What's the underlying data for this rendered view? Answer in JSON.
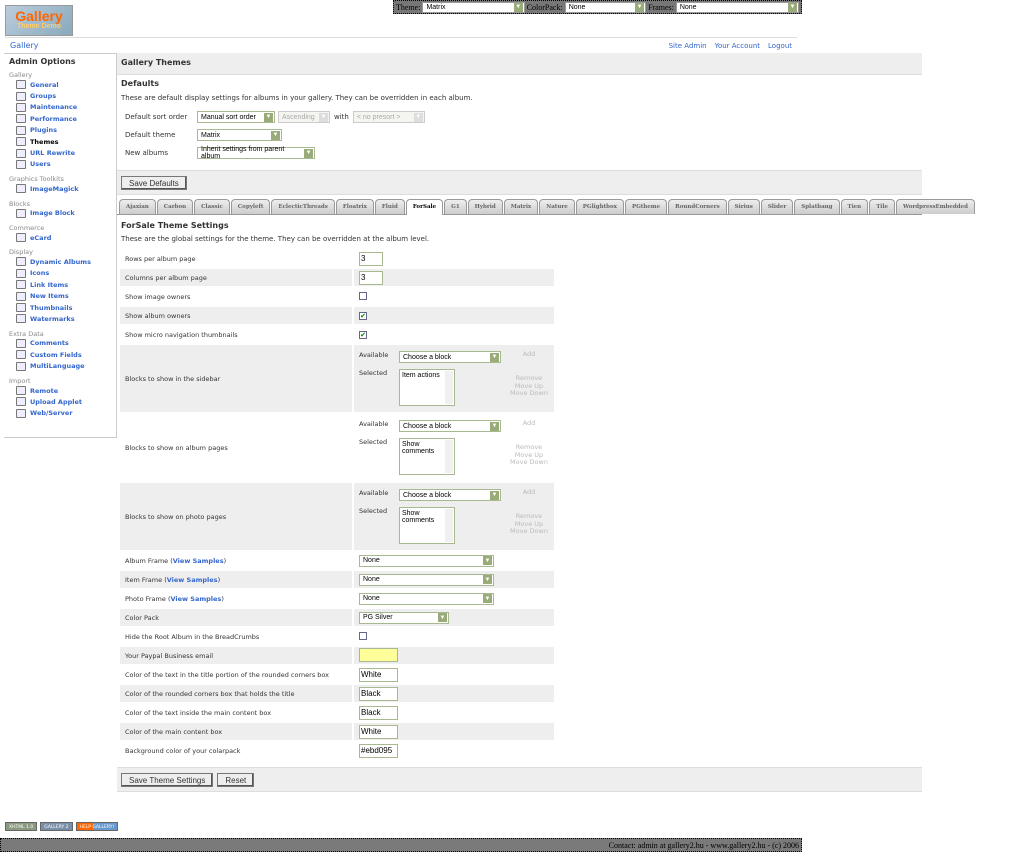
{
  "topbar": {
    "theme_label": "Theme:",
    "theme_value": "Matrix",
    "colorpack_label": "ColorPack:",
    "colorpack_value": "None",
    "frames_label": "Frames:",
    "frames_value": "None"
  },
  "logo": {
    "line1": "Gallery",
    "line2": "Theme Demo"
  },
  "nav": {
    "home": "Gallery",
    "links": [
      "Site Admin",
      "Your Account",
      "Logout"
    ]
  },
  "sidebar": {
    "title": "Admin Options",
    "groups": [
      {
        "label": "Gallery",
        "items": [
          "General",
          "Groups",
          "Maintenance",
          "Performance",
          "Plugins",
          "Themes",
          "URL Rewrite",
          "Users"
        ],
        "active": "Themes"
      },
      {
        "label": "Graphics Toolkits",
        "items": [
          "ImageMagick"
        ]
      },
      {
        "label": "Blocks",
        "items": [
          "Image Block"
        ]
      },
      {
        "label": "Commerce",
        "items": [
          "eCard"
        ]
      },
      {
        "label": "Display",
        "items": [
          "Dynamic Albums",
          "Icons",
          "Link Items",
          "New Items",
          "Thumbnails",
          "Watermarks"
        ]
      },
      {
        "label": "Extra Data",
        "items": [
          "Comments",
          "Custom Fields",
          "MultiLanguage"
        ]
      },
      {
        "label": "Import",
        "items": [
          "Remote",
          "Upload Applet",
          "Web/Server"
        ]
      }
    ]
  },
  "header": {
    "title": "Gallery Themes"
  },
  "defaults": {
    "title": "Defaults",
    "description": "These are default display settings for albums in your gallery. They can be overridden in each album.",
    "sort_label": "Default sort order",
    "sort_value": "Manual sort order",
    "direction_value": "Ascending",
    "with_label": "with",
    "presort_value": "< no presort >",
    "theme_label": "Default theme",
    "theme_value": "Matrix",
    "new_albums_label": "New albums",
    "new_albums_value": "Inherit settings from parent album",
    "save_label": "Save Defaults"
  },
  "tabs": {
    "items": [
      "Ajaxian",
      "Carbon",
      "Classic",
      "Copyleft",
      "EclecticThreads",
      "Floatrix",
      "Fluid",
      "ForSale",
      "G1",
      "Hybrid",
      "Matrix",
      "Nature",
      "PGlightbox",
      "PGtheme",
      "RoundCorners",
      "Sirius",
      "Slider",
      "Splatbang",
      "Tien",
      "Tile",
      "WordpressEmbedded"
    ],
    "active": "ForSale"
  },
  "settings": {
    "title": "ForSale Theme Settings",
    "description": "These are the global settings for the theme. They can be overridden at the album level.",
    "view_samples": "View Samples",
    "available_label": "Available",
    "selected_label": "Selected",
    "add_label": "Add",
    "remove_label": "Remove",
    "move_up_label": "Move Up",
    "move_down_label": "Move Down",
    "rows": [
      {
        "label": "Rows per album page",
        "type": "text",
        "value": "3"
      },
      {
        "label": "Columns per album page",
        "type": "text",
        "value": "3"
      },
      {
        "label": "Show image owners",
        "type": "checkbox",
        "checked": false
      },
      {
        "label": "Show album owners",
        "type": "checkbox",
        "checked": true
      },
      {
        "label": "Show micro navigation thumbnails",
        "type": "checkbox",
        "checked": true
      },
      {
        "label": "Blocks to show in the sidebar",
        "type": "blocks",
        "available": "Choose a block",
        "selected": "Item actions"
      },
      {
        "label": "Blocks to show on album pages",
        "type": "blocks",
        "available": "Choose a block",
        "selected": "Show comments"
      },
      {
        "label": "Blocks to show on photo pages",
        "type": "blocks",
        "available": "Choose a block",
        "selected": "Show comments"
      },
      {
        "label": "Album Frame",
        "type": "frame",
        "value": "None"
      },
      {
        "label": "Item Frame",
        "type": "frame",
        "value": "None"
      },
      {
        "label": "Photo Frame",
        "type": "frame",
        "value": "None"
      },
      {
        "label": "Color Pack",
        "type": "select",
        "value": "PG Silver"
      },
      {
        "label": "Hide the Root Album in the BreadCrumbs",
        "type": "checkbox",
        "checked": false
      },
      {
        "label": "Your Paypal Business email",
        "type": "email",
        "value": ""
      },
      {
        "label": "Color of the text in the title portion of the rounded corners box",
        "type": "text",
        "value": "White"
      },
      {
        "label": "Color of the rounded corners box that holds the title",
        "type": "text",
        "value": "Black"
      },
      {
        "label": "Color of the text inside the main content box",
        "type": "text",
        "value": "Black"
      },
      {
        "label": "Color of the main content box",
        "type": "text",
        "value": "White"
      },
      {
        "label": "Background color of your colarpack",
        "type": "text",
        "value": "#ebd095"
      }
    ],
    "save_label": "Save Theme Settings",
    "reset_label": "Reset"
  },
  "badges": [
    "XHTML 1.0",
    "GALLERY 2",
    "HELP GALLERY!"
  ],
  "footer": {
    "text": "Contact: admin at gallery2.hu - www.gallery2.hu - (c) 2006"
  },
  "colors": {
    "link": "#3366cc",
    "panel": "#eeeeee",
    "input_border": "#a8b890",
    "paypal_bg": "#ffff99"
  }
}
